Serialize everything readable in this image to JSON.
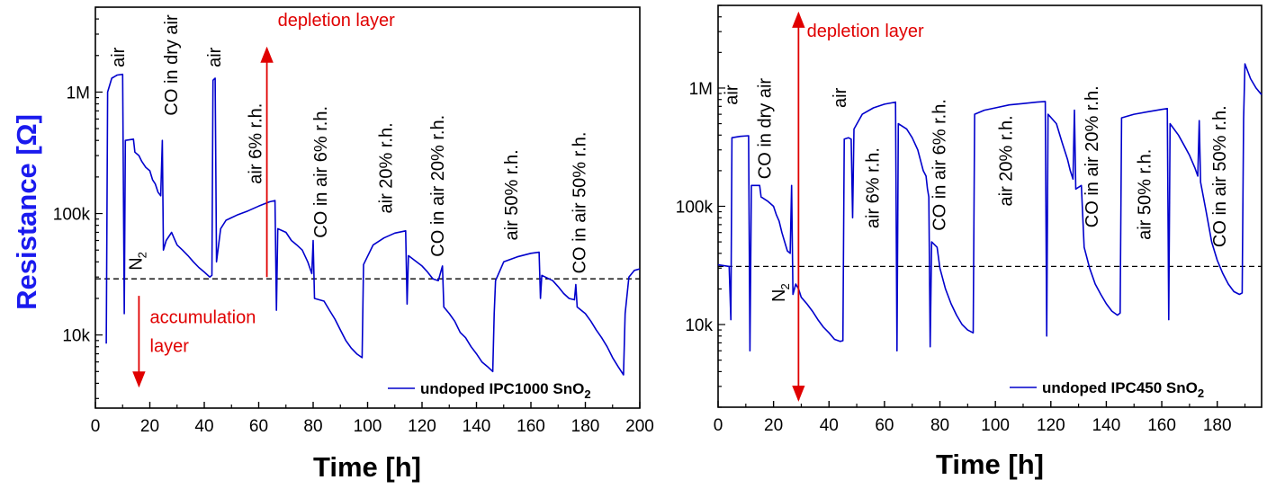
{
  "colors": {
    "series": "#0000cc",
    "arrow": "#e00000",
    "axis": "#000000",
    "ylabel": "#1a1aee"
  },
  "chart_data": [
    {
      "type": "line",
      "xlabel": "Time [h]",
      "ylabel": "Resistance [Ω]",
      "xlim": [
        0,
        200
      ],
      "ylog": true,
      "ylim": [
        2500,
        5000000
      ],
      "xticks": [
        "0",
        "20",
        "40",
        "60",
        "80",
        "100",
        "120",
        "140",
        "160",
        "180",
        "200"
      ],
      "xtick_values": [
        0,
        20,
        40,
        60,
        80,
        100,
        120,
        140,
        160,
        180,
        200
      ],
      "yticks": [
        "10k",
        "100k",
        "1M"
      ],
      "ytick_values": [
        10000,
        100000,
        1000000
      ],
      "reference_line_y": 29000,
      "legend": {
        "label": "undoped IPC1000 SnO",
        "sub": "2",
        "placement": "bottom-right"
      },
      "series": [
        {
          "points": [
            [
              4,
              8500
            ],
            [
              4.5,
              1000000
            ],
            [
              6,
              1300000
            ],
            [
              8,
              1380000
            ],
            [
              10,
              1400000
            ],
            [
              10.6,
              15000
            ],
            [
              11,
              400000
            ],
            [
              14,
              410000
            ],
            [
              14.5,
              320000
            ],
            [
              16,
              300000
            ],
            [
              17,
              270000
            ],
            [
              18.5,
              240000
            ],
            [
              20,
              225000
            ],
            [
              21,
              190000
            ],
            [
              22,
              175000
            ],
            [
              23,
              150000
            ],
            [
              24,
              140000
            ],
            [
              24.6,
              400000
            ],
            [
              25,
              50000
            ],
            [
              26,
              60000
            ],
            [
              28,
              70000
            ],
            [
              29,
              62000
            ],
            [
              30,
              55000
            ],
            [
              32,
              50000
            ],
            [
              34,
              45000
            ],
            [
              36,
              40000
            ],
            [
              38,
              36000
            ],
            [
              40,
              33000
            ],
            [
              42,
              30000
            ],
            [
              42.8,
              31000
            ],
            [
              43.2,
              1250000
            ],
            [
              44,
              1300000
            ],
            [
              44.5,
              40000
            ],
            [
              46,
              75000
            ],
            [
              48,
              88000
            ],
            [
              52,
              97000
            ],
            [
              56,
              105000
            ],
            [
              60,
              115000
            ],
            [
              64,
              125000
            ],
            [
              66,
              128000
            ],
            [
              66.5,
              16000
            ],
            [
              67,
              75000
            ],
            [
              70,
              70000
            ],
            [
              72,
              60000
            ],
            [
              74,
              55000
            ],
            [
              76,
              50000
            ],
            [
              78,
              40000
            ],
            [
              79.5,
              32000
            ],
            [
              80,
              60000
            ],
            [
              80.5,
              20000
            ],
            [
              84,
              19000
            ],
            [
              86,
              16000
            ],
            [
              88,
              13500
            ],
            [
              90,
              11000
            ],
            [
              92,
              9000
            ],
            [
              94,
              7800
            ],
            [
              96,
              7000
            ],
            [
              98,
              6500
            ],
            [
              98.5,
              38000
            ],
            [
              102,
              55000
            ],
            [
              106,
              63000
            ],
            [
              110,
              69000
            ],
            [
              114,
              72000
            ],
            [
              114.5,
              18000
            ],
            [
              115,
              45000
            ],
            [
              118,
              40000
            ],
            [
              120,
              37000
            ],
            [
              122,
              33000
            ],
            [
              124,
              29000
            ],
            [
              126,
              28000
            ],
            [
              127.5,
              37000
            ],
            [
              128,
              17000
            ],
            [
              130,
              15000
            ],
            [
              132,
              13000
            ],
            [
              134,
              10500
            ],
            [
              136,
              9500
            ],
            [
              138,
              8000
            ],
            [
              140,
              7000
            ],
            [
              142,
              6000
            ],
            [
              144,
              5500
            ],
            [
              146,
              5000
            ],
            [
              146.5,
              15000
            ],
            [
              147,
              28000
            ],
            [
              150,
              40000
            ],
            [
              155,
              44000
            ],
            [
              160,
              47000
            ],
            [
              163,
              48000
            ],
            [
              163.5,
              20000
            ],
            [
              164,
              31000
            ],
            [
              168,
              28000
            ],
            [
              170,
              25000
            ],
            [
              172,
              22000
            ],
            [
              174,
              20000
            ],
            [
              176,
              19500
            ],
            [
              176.5,
              26000
            ],
            [
              177,
              17000
            ],
            [
              180,
              15000
            ],
            [
              182,
              13000
            ],
            [
              184,
              11000
            ],
            [
              186,
              9500
            ],
            [
              188,
              8000
            ],
            [
              190,
              6500
            ],
            [
              192,
              5500
            ],
            [
              194,
              4700
            ],
            [
              194.6,
              15000
            ],
            [
              196,
              30000
            ],
            [
              198,
              34000
            ],
            [
              200,
              35000
            ]
          ]
        }
      ],
      "annotations": [
        {
          "text": "air",
          "x": 10.5,
          "y": 1600000
        },
        {
          "text": "CO in dry air",
          "x": 30,
          "y": 640000
        },
        {
          "text": "air",
          "x": 46,
          "y": 1600000
        },
        {
          "text": "air 6% r.h.",
          "x": 61,
          "y": 175000
        },
        {
          "text": "CO in air 6% r.h.",
          "x": 85,
          "y": 63000
        },
        {
          "text": "air 20% r.h.",
          "x": 109,
          "y": 100000
        },
        {
          "text": "CO in air 20% r.h.",
          "x": 128,
          "y": 44000
        },
        {
          "text": "air 50% r.h.",
          "x": 155,
          "y": 60000
        },
        {
          "text": "CO in air 50% r.h.",
          "x": 180,
          "y": 32000
        },
        {
          "text": "N",
          "sub": "2",
          "x": 17,
          "y": 34000
        }
      ],
      "arrows": [
        {
          "label": "depletion layer",
          "x": 63,
          "y_from": 30000,
          "y_to": 2300000,
          "label_pos": [
            67,
            3500000
          ]
        },
        {
          "label": "accumulation",
          "label2": "layer",
          "x": 16,
          "y_from": 21000,
          "y_to": 3800,
          "label_pos": [
            20,
            12500
          ]
        }
      ]
    },
    {
      "type": "line",
      "xlabel": "Time [h]",
      "xlim": [
        0,
        196
      ],
      "ylog": true,
      "ylim": [
        2000,
        5000000
      ],
      "xticks": [
        "0",
        "20",
        "40",
        "60",
        "80",
        "100",
        "120",
        "140",
        "160",
        "180"
      ],
      "xtick_values": [
        0,
        20,
        40,
        60,
        80,
        100,
        120,
        140,
        160,
        180
      ],
      "yticks": [
        "10k",
        "100k",
        "1M"
      ],
      "ytick_values": [
        10000,
        100000,
        1000000
      ],
      "reference_line_y": 31000,
      "legend": {
        "label": "undoped IPC450 SnO",
        "sub": "2",
        "placement": "bottom-right"
      },
      "series": [
        {
          "points": [
            [
              0,
              32000
            ],
            [
              4,
              31000
            ],
            [
              4.6,
              11000
            ],
            [
              5,
              380000
            ],
            [
              8,
              390000
            ],
            [
              11,
              395000
            ],
            [
              11.5,
              6000
            ],
            [
              12,
              150000
            ],
            [
              15,
              150000
            ],
            [
              15.5,
              120000
            ],
            [
              18,
              110000
            ],
            [
              20,
              100000
            ],
            [
              21,
              85000
            ],
            [
              22,
              75000
            ],
            [
              23,
              60000
            ],
            [
              24,
              50000
            ],
            [
              25,
              42000
            ],
            [
              26,
              40000
            ],
            [
              26.5,
              150000
            ],
            [
              27,
              18000
            ],
            [
              28,
              22000
            ],
            [
              29,
              20000
            ],
            [
              30,
              17000
            ],
            [
              32,
              15000
            ],
            [
              34,
              13000
            ],
            [
              36,
              11000
            ],
            [
              38,
              9500
            ],
            [
              40,
              8500
            ],
            [
              42,
              7500
            ],
            [
              44,
              7200
            ],
            [
              45,
              7300
            ],
            [
              45.5,
              370000
            ],
            [
              47,
              380000
            ],
            [
              48,
              370000
            ],
            [
              48.5,
              80000
            ],
            [
              49,
              450000
            ],
            [
              52,
              600000
            ],
            [
              56,
              680000
            ],
            [
              60,
              730000
            ],
            [
              64,
              760000
            ],
            [
              64.5,
              6000
            ],
            [
              65,
              500000
            ],
            [
              68,
              450000
            ],
            [
              70,
              380000
            ],
            [
              72,
              300000
            ],
            [
              74,
              200000
            ],
            [
              75,
              180000
            ],
            [
              75.5,
              140000
            ],
            [
              76,
              120000
            ],
            [
              76.5,
              6500
            ],
            [
              77,
              50000
            ],
            [
              79,
              45000
            ],
            [
              80,
              30000
            ],
            [
              82,
              20000
            ],
            [
              84,
              15000
            ],
            [
              86,
              12000
            ],
            [
              88,
              10000
            ],
            [
              90,
              9000
            ],
            [
              92,
              8500
            ],
            [
              92.5,
              600000
            ],
            [
              96,
              650000
            ],
            [
              100,
              680000
            ],
            [
              105,
              720000
            ],
            [
              110,
              740000
            ],
            [
              115,
              760000
            ],
            [
              118,
              770000
            ],
            [
              118.5,
              8000
            ],
            [
              119,
              600000
            ],
            [
              122,
              500000
            ],
            [
              124,
              350000
            ],
            [
              126,
              250000
            ],
            [
              127,
              200000
            ],
            [
              128,
              170000
            ],
            [
              128.5,
              650000
            ],
            [
              129,
              140000
            ],
            [
              131,
              150000
            ],
            [
              132,
              45000
            ],
            [
              134,
              30000
            ],
            [
              136,
              22000
            ],
            [
              138,
              18000
            ],
            [
              140,
              15000
            ],
            [
              142,
              13000
            ],
            [
              144,
              12000
            ],
            [
              145,
              12500
            ],
            [
              145.5,
              560000
            ],
            [
              150,
              600000
            ],
            [
              155,
              630000
            ],
            [
              160,
              660000
            ],
            [
              162,
              670000
            ],
            [
              162.5,
              11000
            ],
            [
              163,
              500000
            ],
            [
              166,
              400000
            ],
            [
              168,
              330000
            ],
            [
              170,
              270000
            ],
            [
              172,
              210000
            ],
            [
              173,
              180000
            ],
            [
              173.5,
              530000
            ],
            [
              174,
              160000
            ],
            [
              176,
              90000
            ],
            [
              178,
              50000
            ],
            [
              180,
              35000
            ],
            [
              182,
              27000
            ],
            [
              184,
              22000
            ],
            [
              186,
              19000
            ],
            [
              188,
              18000
            ],
            [
              189,
              18500
            ],
            [
              189.5,
              550000
            ],
            [
              190,
              1600000
            ],
            [
              192,
              1200000
            ],
            [
              194,
              1000000
            ],
            [
              196,
              880000
            ]
          ]
        }
      ],
      "annotations": [
        {
          "text": "air",
          "x": 7,
          "y": 720000
        },
        {
          "text": "CO in dry air",
          "x": 19,
          "y": 170000
        },
        {
          "text": "air",
          "x": 46,
          "y": 680000
        },
        {
          "text": "air 6% r.h.",
          "x": 58,
          "y": 65000
        },
        {
          "text": "CO in air 6% r.h.",
          "x": 82,
          "y": 62000
        },
        {
          "text": "air 20% r.h.",
          "x": 106,
          "y": 100000
        },
        {
          "text": "CO in air 20% r.h.",
          "x": 137,
          "y": 66000
        },
        {
          "text": "air 50% r.h.",
          "x": 156,
          "y": 52000
        },
        {
          "text": "CO in air 50% r.h.",
          "x": 183,
          "y": 45000
        },
        {
          "text": "N",
          "sub": "2",
          "x": 24,
          "y": 15500
        }
      ],
      "arrows": [
        {
          "label": "depletion layer",
          "x": 29,
          "y_from": 2300,
          "y_to": 4300000,
          "label_pos": [
            32,
            2700000
          ],
          "double": true
        }
      ]
    }
  ]
}
